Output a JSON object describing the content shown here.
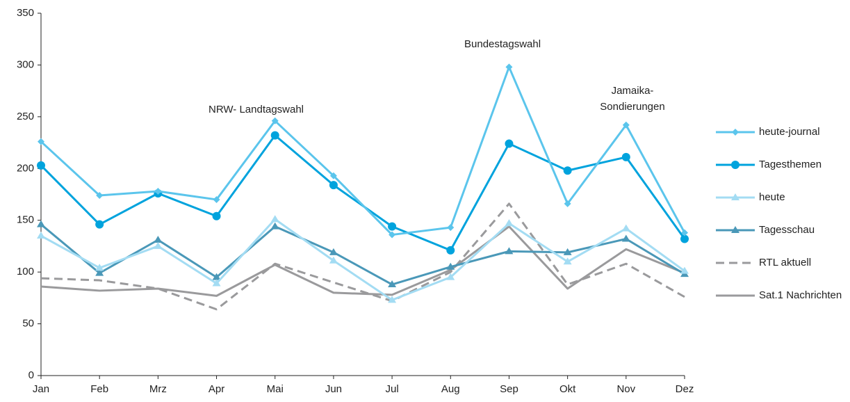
{
  "chart_data": {
    "type": "line",
    "categories": [
      "Jan",
      "Feb",
      "Mrz",
      "Apr",
      "Mai",
      "Jun",
      "Jul",
      "Aug",
      "Sep",
      "Okt",
      "Nov",
      "Dez"
    ],
    "ylim": [
      0,
      350
    ],
    "yticks": [
      0,
      50,
      100,
      150,
      200,
      250,
      300,
      350
    ],
    "grid": false,
    "legend": "right",
    "annotations": [
      "NRW- Landtagswahl",
      "Bundestagswahl",
      "Jamaika- Sondierungen"
    ],
    "series": [
      {
        "name": "heute-journal",
        "color": "#5bc5ec",
        "marker": "diamond",
        "dash": false,
        "values": [
          226,
          174,
          178,
          170,
          246,
          193,
          136,
          143,
          298,
          166,
          242,
          138
        ]
      },
      {
        "name": "Tagesthemen",
        "color": "#00a3dd",
        "marker": "circle",
        "dash": false,
        "values": [
          203,
          146,
          176,
          154,
          232,
          184,
          144,
          121,
          224,
          198,
          211,
          132
        ]
      },
      {
        "name": "heute",
        "color": "#a3dcf3",
        "marker": "triangle",
        "dash": false,
        "values": [
          135,
          104,
          125,
          89,
          151,
          111,
          73,
          95,
          147,
          110,
          142,
          101
        ]
      },
      {
        "name": "Tagesschau",
        "color": "#4a98b8",
        "marker": "triangle",
        "dash": false,
        "values": [
          146,
          99,
          131,
          95,
          144,
          119,
          88,
          105,
          120,
          119,
          132,
          98
        ]
      },
      {
        "name": "RTL aktuell",
        "color": "#9a9a9c",
        "marker": "none",
        "dash": true,
        "values": [
          94,
          92,
          84,
          64,
          108,
          90,
          72,
          100,
          166,
          88,
          108,
          76
        ]
      },
      {
        "name": "Sat.1 Nachrichten",
        "color": "#9a9a9c",
        "marker": "none",
        "dash": false,
        "values": [
          86,
          82,
          84,
          77,
          107,
          80,
          78,
          102,
          144,
          84,
          122,
          99
        ]
      }
    ]
  }
}
